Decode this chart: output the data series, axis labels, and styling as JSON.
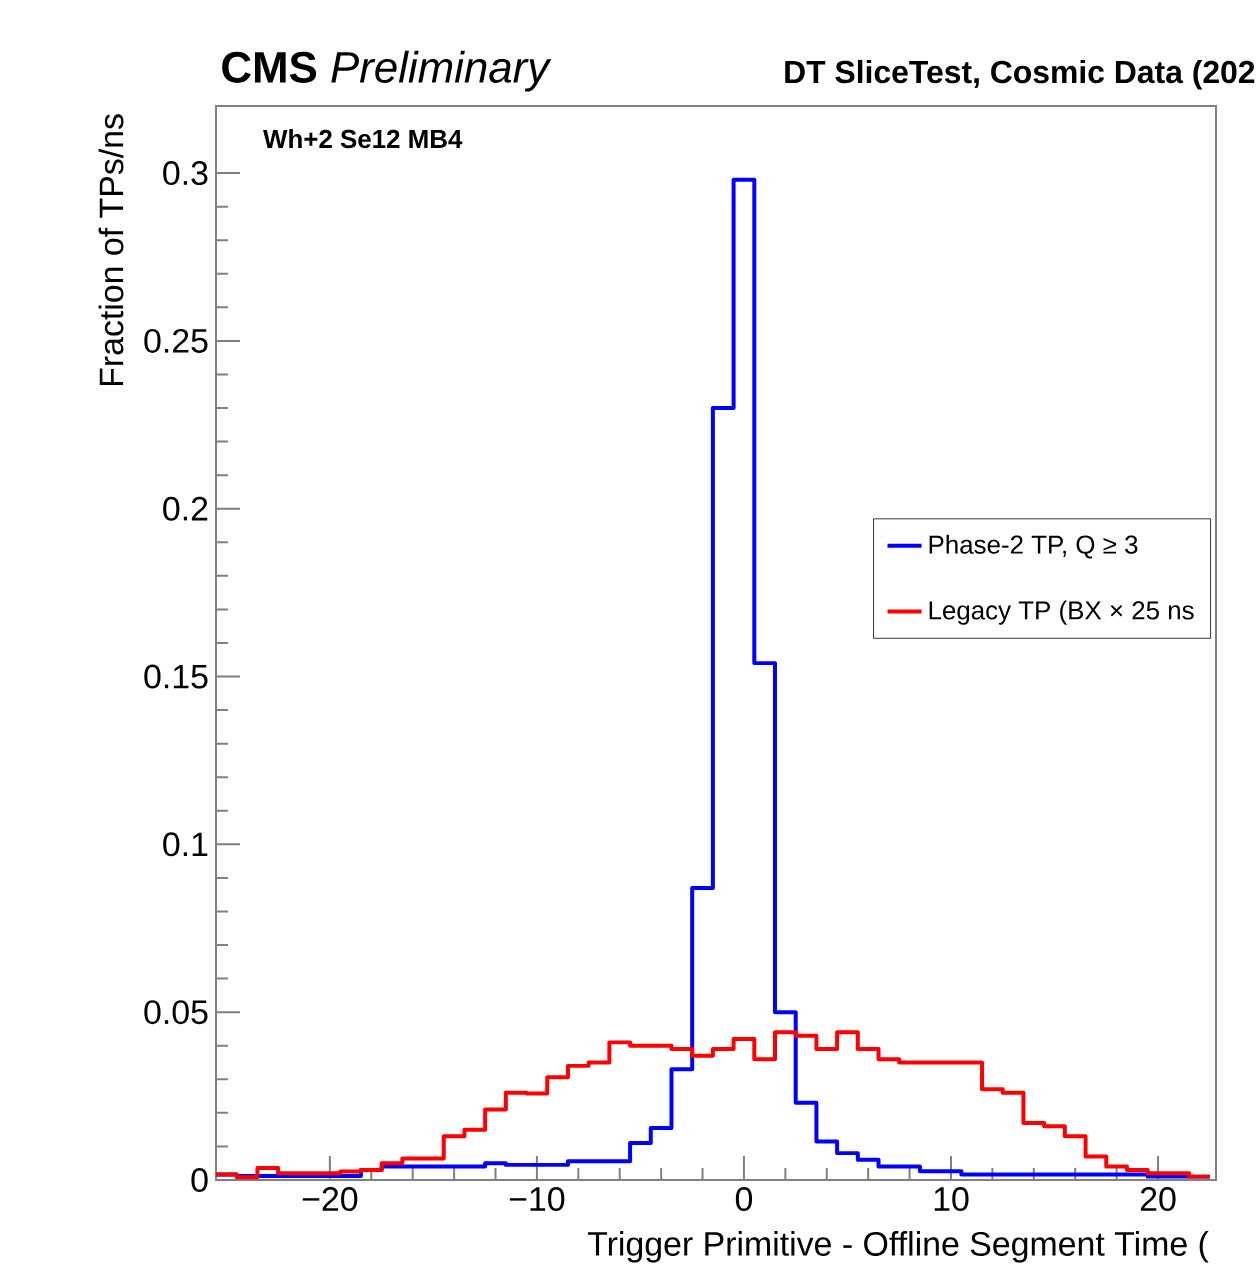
{
  "chart_data": {
    "type": "histogram",
    "title": "**CMS** *Preliminary*",
    "subtitle": "DT SliceTest, Cosmic Data (202",
    "annotations": [
      "Wh+2 Se12 MB4"
    ],
    "xlabel": "Trigger Primitive - Offline Segment Time (",
    "ylabel": "Fraction of TPs/ns",
    "bins": [
      -25.5,
      -24.5,
      -23.5,
      -22.5,
      -21.5,
      -20.5,
      -19.5,
      -18.5,
      -17.5,
      -16.5,
      -15.5,
      -14.5,
      -13.5,
      -12.5,
      -11.5,
      -10.5,
      -9.5,
      -8.5,
      -7.5,
      -6.5,
      -5.5,
      -4.5,
      -3.5,
      -2.5,
      -1.5,
      -0.5,
      0.5,
      1.5,
      2.5,
      3.5,
      4.5,
      5.5,
      6.5,
      7.5,
      8.5,
      9.5,
      10.5,
      11.5,
      12.5,
      13.5,
      14.5,
      15.5,
      16.5,
      17.5,
      18.5,
      19.5,
      20.5,
      21.5,
      22.5
    ],
    "series": [
      {
        "name": "Phase-2 TP, Q ≥ 3",
        "color": "#0000ff",
        "values": [
          0.0016,
          0.0012,
          0.0012,
          0.0012,
          0.0012,
          0.0012,
          0.0012,
          0.003,
          0.004,
          0.004,
          0.004,
          0.004,
          0.004,
          0.005,
          0.0045,
          0.0045,
          0.0045,
          0.0056,
          0.0056,
          0.0056,
          0.011,
          0.0155,
          0.033,
          0.087,
          0.23,
          0.298,
          0.154,
          0.05,
          0.023,
          0.0115,
          0.008,
          0.006,
          0.004,
          0.004,
          0.0026,
          0.0026,
          0.0016,
          0.0016,
          0.0016,
          0.0016,
          0.0016,
          0.0016,
          0.0016,
          0.0016,
          0.0016,
          0.001,
          0.001,
          0.001
        ]
      },
      {
        "name": "Legacy TP (BX × 25 ns",
        "color": "#ff0000",
        "values": [
          0.0016,
          0.0008,
          0.0036,
          0.002,
          0.002,
          0.002,
          0.0025,
          0.003,
          0.005,
          0.0064,
          0.0064,
          0.013,
          0.015,
          0.021,
          0.026,
          0.0258,
          0.0306,
          0.034,
          0.035,
          0.041,
          0.04,
          0.04,
          0.039,
          0.037,
          0.039,
          0.042,
          0.036,
          0.044,
          0.043,
          0.039,
          0.044,
          0.039,
          0.036,
          0.035,
          0.035,
          0.035,
          0.035,
          0.027,
          0.026,
          0.017,
          0.016,
          0.013,
          0.007,
          0.004,
          0.003,
          0.002,
          0.002,
          0.001
        ]
      }
    ],
    "xlim": [
      -25.5,
      22.8
    ],
    "ylim": [
      0,
      0.32
    ],
    "xticks": [
      {
        "value": -20,
        "label": "−20"
      },
      {
        "value": -10,
        "label": "−10"
      },
      0,
      10,
      20
    ],
    "yticks": [
      0,
      0.05,
      0.1,
      0.15,
      0.2,
      0.25,
      0.3
    ],
    "legend": "right",
    "grid": false
  }
}
